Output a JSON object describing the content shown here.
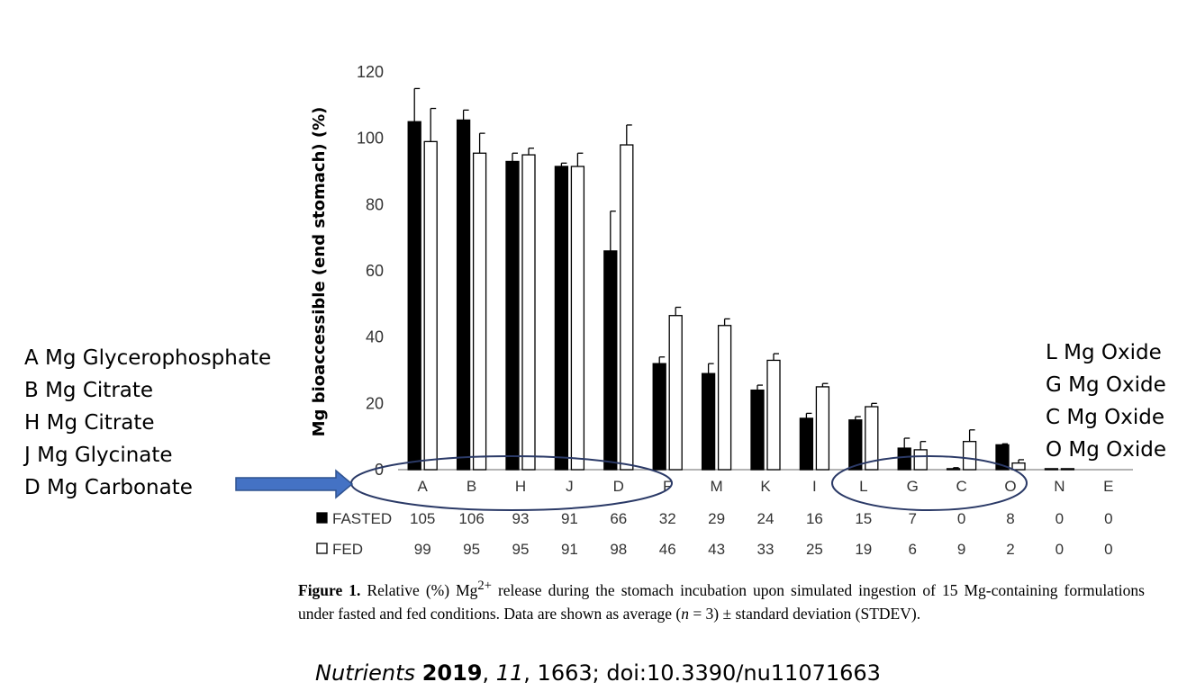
{
  "chart_data": {
    "type": "bar",
    "ylabel": "Mg bioaccessible (end stomach) (%)",
    "ylim": [
      0,
      120
    ],
    "yticks": [
      "0",
      "20",
      "40",
      "60",
      "80",
      "100",
      "120"
    ],
    "categories": [
      "A",
      "B",
      "H",
      "J",
      "D",
      "F",
      "M",
      "K",
      "I",
      "L",
      "G",
      "C",
      "O",
      "N",
      "E"
    ],
    "series": [
      {
        "name": "FASTED",
        "fill": "#000000",
        "values": [
          105,
          106,
          93,
          91,
          66,
          32,
          29,
          24,
          16,
          15,
          7,
          0,
          8,
          0,
          0
        ],
        "bar_heights": [
          105,
          105.5,
          93,
          91.5,
          66,
          32,
          29,
          24,
          15.5,
          15,
          6.5,
          0.3,
          7.5,
          0.3,
          0
        ],
        "errors": [
          10,
          3,
          2.5,
          1,
          12,
          2,
          3,
          1.5,
          1.5,
          1,
          3,
          0.3,
          0.3,
          0,
          0
        ]
      },
      {
        "name": "FED",
        "fill": "#ffffff",
        "values": [
          99,
          95,
          95,
          91,
          98,
          46,
          43,
          33,
          25,
          19,
          6,
          9,
          2,
          0,
          0
        ],
        "bar_heights": [
          99,
          95.5,
          95,
          91.5,
          98,
          46.5,
          43.5,
          33,
          25,
          19,
          6,
          8.5,
          2,
          0.3,
          0
        ],
        "errors": [
          10,
          6,
          2,
          4,
          6,
          2.5,
          2,
          2,
          1,
          1,
          2.5,
          3.5,
          1,
          0,
          0
        ]
      }
    ],
    "table_labels": [
      "FASTED",
      "FED"
    ]
  },
  "legend_left": [
    "A Mg Glycerophosphate",
    "B Mg Citrate",
    "H Mg Citrate",
    "J Mg Glycinate",
    "D Mg Carbonate"
  ],
  "legend_right": [
    "L Mg Oxide",
    "G Mg Oxide",
    "C Mg Oxide",
    "O Mg Oxide"
  ],
  "caption": {
    "label": "Figure 1.",
    "text_before_sup": " Relative (%) Mg",
    "sup": "2+",
    "text_after_sup": " release during the stomach incubation upon simulated ingestion of 15 Mg-containing formulations under fasted and fed conditions. Data are shown as average (",
    "n_italic": "n",
    "text_end": " = 3) ± standard deviation (STDEV)."
  },
  "citation": {
    "journal": "Nutrients",
    "year": "2019",
    "volume": "11",
    "rest": ", 1663; doi:10.3390/nu11071663"
  },
  "colors": {
    "arrow": "#4472c4",
    "arrow_border": "#2f528f",
    "ellipse": "#2b3a67"
  }
}
